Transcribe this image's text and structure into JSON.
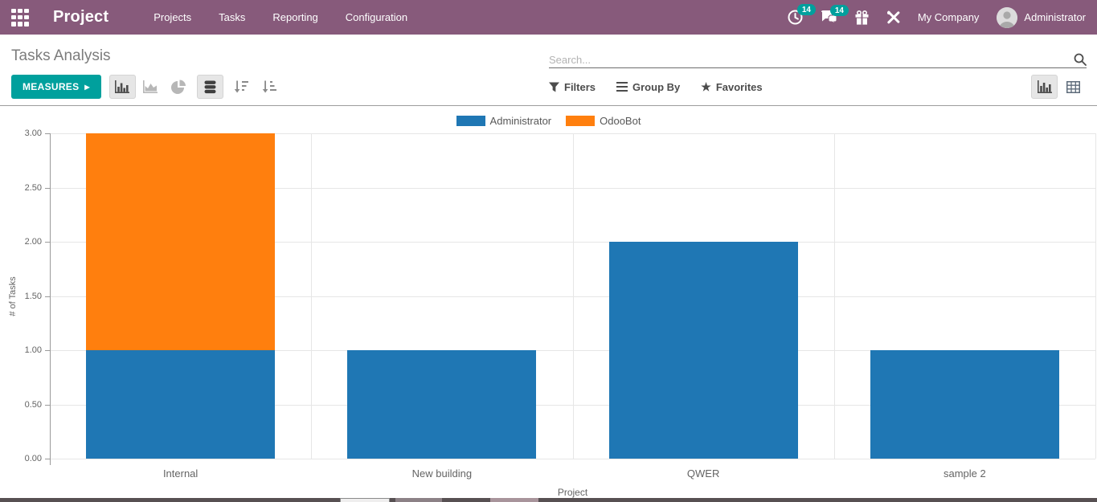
{
  "navbar": {
    "app_name": "Project",
    "menu_items": [
      "Projects",
      "Tasks",
      "Reporting",
      "Configuration"
    ],
    "activity_badge": "14",
    "messages_badge": "14",
    "company": "My Company",
    "user": "Administrator",
    "colors": {
      "background": "#875A7B",
      "badge": "#00A09D"
    }
  },
  "control_panel": {
    "title": "Tasks Analysis",
    "search_placeholder": "Search...",
    "search_value": "",
    "measures_label": "MEASURES",
    "filters_label": "Filters",
    "group_by_label": "Group By",
    "favorites_label": "Favorites"
  },
  "icons": {
    "apps_menu": "grid-3x3",
    "activity": "clock",
    "messages": "chat-bubbles",
    "rewards": "gift",
    "developer_tools": "crossed-tools",
    "search": "magnifier",
    "filters": "funnel",
    "group_by": "triple-bars",
    "favorites_star_glyph": "★",
    "measures_caret": "▸",
    "toolbar": [
      "bar-chart",
      "area-chart",
      "pie-chart",
      "database-stacked",
      "sort-amount-desc",
      "sort-amount-asc"
    ],
    "view_switcher": [
      "bar-chart",
      "pivot-grid"
    ]
  },
  "chart_data": {
    "type": "bar",
    "stacked": true,
    "title": "",
    "xlabel": "Project",
    "ylabel": "# of Tasks",
    "categories": [
      "Internal",
      "New building",
      "QWER",
      "sample 2"
    ],
    "series": [
      {
        "name": "Administrator",
        "color": "#1f77b4",
        "values": [
          1,
          1,
          2,
          1
        ]
      },
      {
        "name": "OdooBot",
        "color": "#ff7f0e",
        "values": [
          2,
          0,
          0,
          0
        ]
      }
    ],
    "ylim": [
      0,
      3
    ],
    "yticks": [
      "0.00",
      "0.50",
      "1.00",
      "1.50",
      "2.00",
      "2.50",
      "3.00"
    ],
    "grid": true,
    "legend_position": "top"
  }
}
